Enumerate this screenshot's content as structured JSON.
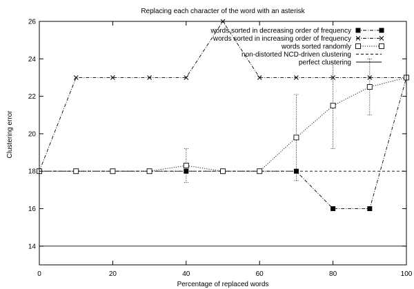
{
  "chart_data": {
    "type": "line",
    "title": "Replacing each character of the word with an asterisk",
    "xlabel": "Percentage of replaced words",
    "ylabel": "Clustering error",
    "xlim": [
      0,
      100
    ],
    "ylim": [
      13,
      26
    ],
    "x_ticks": [
      "0",
      "20",
      "40",
      "60",
      "80",
      "100"
    ],
    "y_ticks": [
      "14",
      "16",
      "18",
      "20",
      "22",
      "24",
      "26"
    ],
    "grid": false,
    "legend_position": "top-right",
    "series": [
      {
        "name": "words sorted in decreasing order of frequency",
        "marker": "filled-square",
        "line_style": "dash-dot",
        "x": [
          0,
          10,
          20,
          30,
          40,
          50,
          60,
          70,
          80,
          90,
          100
        ],
        "y": [
          18,
          18,
          18,
          18,
          18,
          18,
          18,
          18,
          16,
          16,
          23
        ]
      },
      {
        "name": "words sorted in increasing order of frequency",
        "marker": "cross",
        "line_style": "dash-dot",
        "x": [
          0,
          10,
          20,
          30,
          40,
          50,
          60,
          70,
          80,
          90,
          100
        ],
        "y": [
          18,
          23,
          23,
          23,
          23,
          26,
          23,
          23,
          23,
          23,
          23
        ]
      },
      {
        "name": "words sorted randomly",
        "marker": "open-square",
        "line_style": "dotted",
        "x": [
          0,
          10,
          20,
          30,
          40,
          50,
          60,
          70,
          80,
          90,
          100
        ],
        "y": [
          18,
          18,
          18,
          18,
          18.3,
          18,
          18,
          19.8,
          21.5,
          22.5,
          23
        ],
        "error_low": [
          18,
          18,
          18,
          18,
          17.4,
          18,
          18,
          17.5,
          19.2,
          21.0,
          23
        ],
        "error_high": [
          18,
          18,
          18,
          18,
          19.2,
          18,
          18,
          22.1,
          23.8,
          24.0,
          23
        ]
      },
      {
        "name": "non-distorted NCD-driven clustering",
        "line_style": "dashed",
        "constant": 18
      },
      {
        "name": "perfect clustering",
        "line_style": "solid",
        "constant": 14
      }
    ]
  }
}
